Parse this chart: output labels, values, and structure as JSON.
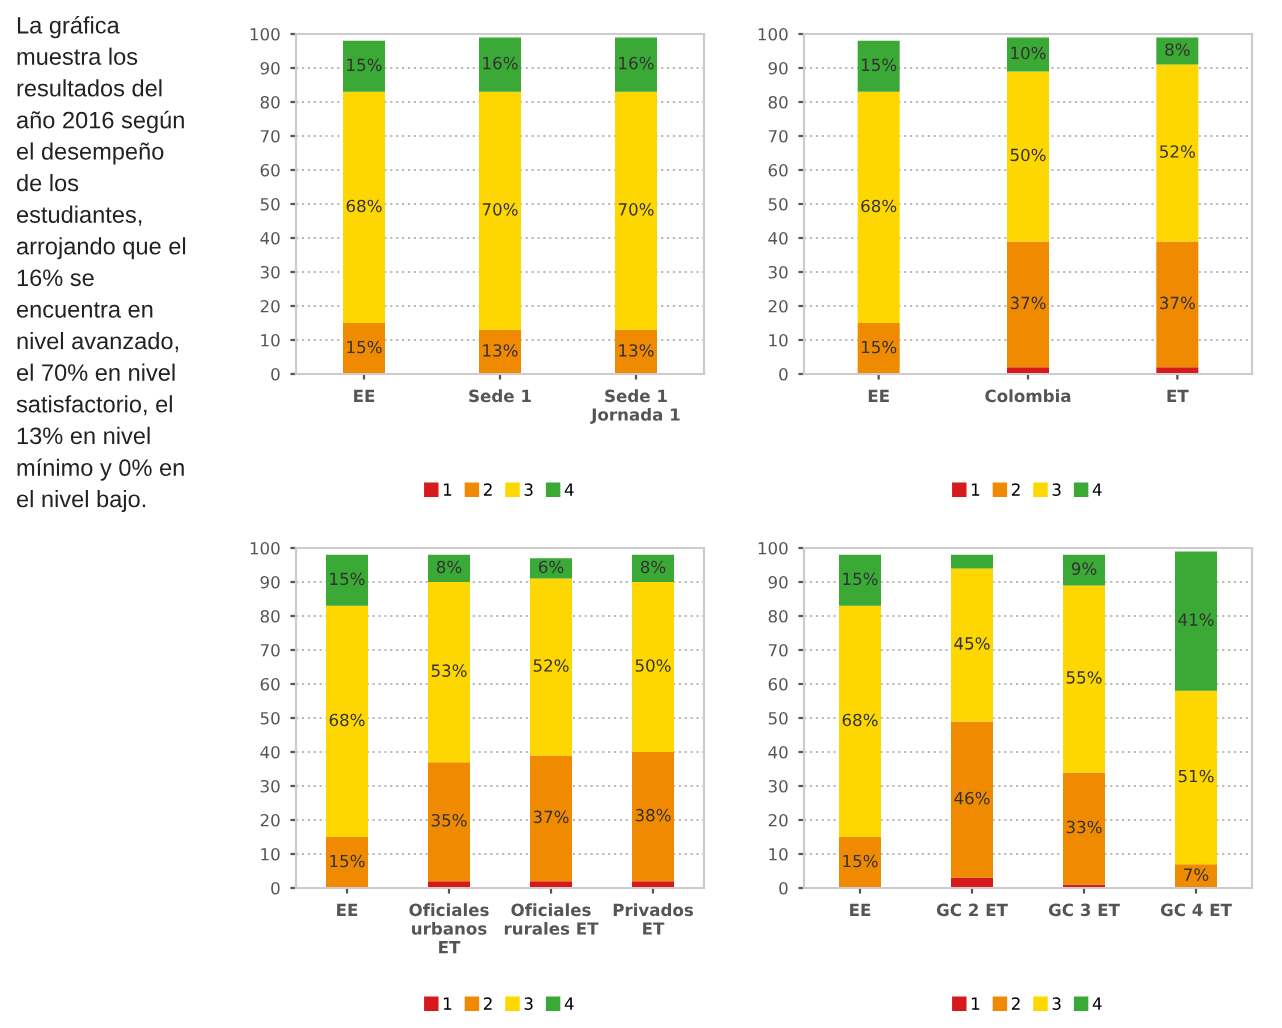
{
  "chart_data": [
    {
      "type": "bar",
      "stacked": true,
      "annotations": [
        "La gráfica\nmuestra los\nresultados del\naño 2016 según\nel desempeño\nde los\nestudiantes,\narrojando que el\n16% se\nencuentra en\nnivel avanzado,\nel 70% en nivel\nsatisfactorio, el\n13% en nivel\nmínimo y 0% en\nel nivel bajo."
      ],
      "categories": [
        "EE",
        "Sede 1",
        "Sede 1\nJornada 1"
      ],
      "ylim": [
        0,
        100
      ],
      "yticks": [
        0,
        10,
        20,
        30,
        40,
        50,
        60,
        70,
        80,
        90,
        100
      ],
      "grid": "y",
      "legend": "bottom",
      "series": [
        {
          "name": "1",
          "color": "#d7191c",
          "values": [
            0,
            0,
            0
          ],
          "value_labels": [
            null,
            null,
            null
          ]
        },
        {
          "name": "2",
          "color": "#f08a00",
          "values": [
            15,
            13,
            13
          ],
          "value_labels": [
            "15%",
            "13%",
            "13%"
          ]
        },
        {
          "name": "3",
          "color": "#ffd700",
          "values": [
            68,
            70,
            70
          ],
          "value_labels": [
            "68%",
            "70%",
            "70%"
          ]
        },
        {
          "name": "4",
          "color": "#3aa935",
          "values": [
            15,
            16,
            16
          ],
          "value_labels": [
            "15%",
            "16%",
            "16%"
          ]
        }
      ]
    },
    {
      "type": "bar",
      "stacked": true,
      "categories": [
        "EE",
        "Colombia",
        "ET"
      ],
      "ylim": [
        0,
        100
      ],
      "yticks": [
        0,
        10,
        20,
        30,
        40,
        50,
        60,
        70,
        80,
        90,
        100
      ],
      "grid": "y",
      "legend": "bottom",
      "series": [
        {
          "name": "1",
          "color": "#d7191c",
          "values": [
            0,
            2,
            2
          ],
          "value_labels": [
            null,
            null,
            null
          ]
        },
        {
          "name": "2",
          "color": "#f08a00",
          "values": [
            15,
            37,
            37
          ],
          "value_labels": [
            "15%",
            "37%",
            "37%"
          ]
        },
        {
          "name": "3",
          "color": "#ffd700",
          "values": [
            68,
            50,
            52
          ],
          "value_labels": [
            "68%",
            "50%",
            "52%"
          ]
        },
        {
          "name": "4",
          "color": "#3aa935",
          "values": [
            15,
            10,
            8
          ],
          "value_labels": [
            "15%",
            "10%",
            "8%"
          ]
        }
      ]
    },
    {
      "type": "bar",
      "stacked": true,
      "categories": [
        "EE",
        "Oficiales\nurbanos\nET",
        "Oficiales\nrurales ET",
        "Privados\nET"
      ],
      "ylim": [
        0,
        100
      ],
      "yticks": [
        0,
        10,
        20,
        30,
        40,
        50,
        60,
        70,
        80,
        90,
        100
      ],
      "grid": "y",
      "legend": "bottom",
      "series": [
        {
          "name": "1",
          "color": "#d7191c",
          "values": [
            0,
            2,
            2,
            2
          ],
          "value_labels": [
            null,
            null,
            null,
            null
          ]
        },
        {
          "name": "2",
          "color": "#f08a00",
          "values": [
            15,
            35,
            37,
            38
          ],
          "value_labels": [
            "15%",
            "35%",
            "37%",
            "38%"
          ]
        },
        {
          "name": "3",
          "color": "#ffd700",
          "values": [
            68,
            53,
            52,
            50
          ],
          "value_labels": [
            "68%",
            "53%",
            "52%",
            "50%"
          ]
        },
        {
          "name": "4",
          "color": "#3aa935",
          "values": [
            15,
            8,
            6,
            8
          ],
          "value_labels": [
            "15%",
            "8%",
            "6%",
            "8%"
          ]
        }
      ]
    },
    {
      "type": "bar",
      "stacked": true,
      "categories": [
        "EE",
        "GC 2 ET",
        "GC 3 ET",
        "GC 4 ET"
      ],
      "ylim": [
        0,
        100
      ],
      "yticks": [
        0,
        10,
        20,
        30,
        40,
        50,
        60,
        70,
        80,
        90,
        100
      ],
      "grid": "y",
      "legend": "bottom",
      "series": [
        {
          "name": "1",
          "color": "#d7191c",
          "values": [
            0,
            3,
            1,
            0
          ],
          "value_labels": [
            null,
            null,
            null,
            null
          ]
        },
        {
          "name": "2",
          "color": "#f08a00",
          "values": [
            15,
            46,
            33,
            7
          ],
          "value_labels": [
            "15%",
            "46%",
            "33%",
            "7%"
          ]
        },
        {
          "name": "3",
          "color": "#ffd700",
          "values": [
            68,
            45,
            55,
            51
          ],
          "value_labels": [
            "68%",
            "45%",
            "55%",
            "51%"
          ]
        },
        {
          "name": "4",
          "color": "#3aa935",
          "values": [
            15,
            4,
            9,
            41
          ],
          "value_labels": [
            "15%",
            null,
            "9%",
            "41%"
          ]
        }
      ]
    }
  ]
}
